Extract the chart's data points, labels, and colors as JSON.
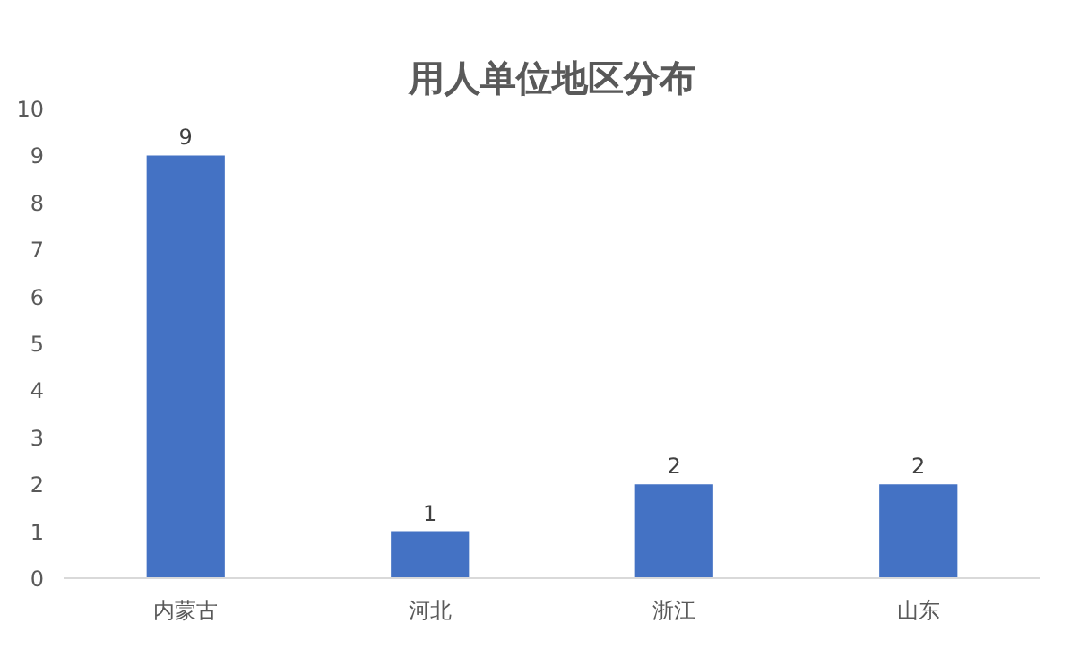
{
  "chart_data": {
    "type": "bar",
    "title": "用人单位地区分布",
    "categories": [
      "内蒙古",
      "河北",
      "浙江",
      "山东"
    ],
    "values": [
      9,
      1,
      2,
      2
    ],
    "color": "#4472c4",
    "ylim": [
      0,
      10
    ],
    "yticks": [
      0,
      1,
      2,
      3,
      4,
      5,
      6,
      7,
      8,
      9,
      10
    ],
    "data_labels": true,
    "grid": false
  }
}
